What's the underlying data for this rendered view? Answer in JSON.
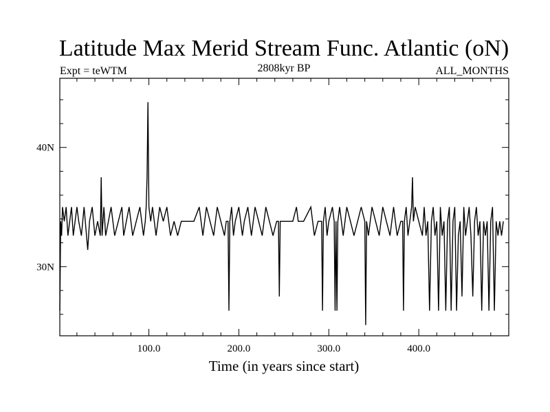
{
  "chart_data": {
    "type": "line",
    "title": "Latitude Max Merid Stream Func. Atlantic (oN)",
    "subtitle_left": "Expt = teWTM",
    "subtitle_center": "2808kyr BP",
    "subtitle_right": "ALL_MONTHS",
    "xlabel": "Time (in years since start)",
    "ylabel": "",
    "xlim": [
      1,
      500
    ],
    "ylim": [
      24.2,
      45.8
    ],
    "x_ticks_major": [
      100,
      200,
      300,
      400
    ],
    "x_tick_labels": [
      "100.0",
      "200.0",
      "300.0",
      "400.0"
    ],
    "x_ticks_minor": [
      20,
      40,
      60,
      80,
      120,
      140,
      160,
      180,
      220,
      240,
      260,
      280,
      320,
      340,
      360,
      380,
      420,
      440,
      460,
      480
    ],
    "y_ticks_major": [
      30,
      40
    ],
    "y_tick_labels": [
      "30N",
      "40N"
    ],
    "y_ticks_minor": [
      26,
      28,
      32,
      34,
      36,
      38,
      42,
      44
    ],
    "grid": false,
    "series": [
      {
        "name": "latitude_max_stream_function",
        "color": "#000000",
        "levels": [
          26.3,
          32.6,
          33.8,
          35.0
        ],
        "baseline": 33.8,
        "x": [
          1,
          2,
          3,
          4,
          6,
          8,
          10,
          12,
          14,
          15,
          16,
          18,
          20,
          22,
          25,
          28,
          32,
          34,
          37,
          40,
          43,
          46,
          47,
          48,
          49,
          50,
          52,
          55,
          58,
          62,
          66,
          70,
          72,
          75,
          78,
          82,
          86,
          90,
          94,
          96,
          97,
          98,
          99,
          100,
          102,
          104,
          108,
          112,
          116,
          120,
          124,
          128,
          132,
          136,
          140,
          144,
          150,
          156,
          160,
          164,
          168,
          172,
          176,
          180,
          184,
          186,
          188,
          189,
          190,
          192,
          194,
          196,
          200,
          204,
          206,
          210,
          214,
          218,
          222,
          226,
          230,
          234,
          238,
          242,
          244,
          245,
          246,
          248,
          252,
          256,
          260,
          264,
          266,
          268,
          272,
          280,
          284,
          288,
          290,
          292,
          293,
          294,
          296,
          298,
          300,
          304,
          306,
          307,
          308,
          309,
          310,
          312,
          316,
          320,
          324,
          328,
          332,
          336,
          340,
          341,
          342,
          344,
          348,
          352,
          356,
          360,
          364,
          368,
          372,
          376,
          380,
          382,
          383,
          384,
          386,
          388,
          390,
          392,
          393,
          394,
          396,
          400,
          404,
          406,
          408,
          410,
          412,
          414,
          416,
          418,
          420,
          422,
          424,
          426,
          428,
          430,
          432,
          434,
          436,
          438,
          440,
          442,
          444,
          446,
          448,
          450,
          452,
          454,
          456,
          458,
          460,
          462,
          464,
          466,
          468,
          470,
          472,
          474,
          476,
          478,
          480,
          482,
          484,
          486,
          488,
          490,
          492,
          494
        ],
        "y": [
          26.3,
          33.8,
          32.6,
          35.0,
          33.8,
          35.0,
          32.6,
          33.8,
          35.0,
          33.8,
          32.6,
          33.8,
          35.0,
          33.8,
          32.6,
          35.0,
          31.4,
          33.8,
          35.0,
          32.6,
          33.8,
          32.6,
          37.5,
          32.6,
          33.8,
          35.0,
          32.6,
          33.8,
          35.0,
          32.6,
          33.8,
          35.0,
          32.6,
          33.8,
          35.0,
          32.6,
          33.8,
          35.0,
          32.6,
          33.8,
          35.0,
          37.5,
          43.8,
          35.0,
          33.8,
          35.0,
          32.6,
          35.0,
          33.8,
          35.0,
          32.6,
          33.8,
          32.6,
          33.8,
          33.8,
          33.8,
          33.8,
          35.0,
          32.6,
          35.0,
          33.8,
          32.6,
          35.0,
          33.8,
          32.6,
          33.8,
          33.8,
          26.3,
          33.8,
          35.0,
          32.6,
          33.8,
          35.0,
          32.6,
          33.8,
          35.0,
          32.6,
          35.0,
          33.8,
          32.6,
          35.0,
          33.8,
          32.6,
          33.8,
          33.8,
          27.5,
          33.8,
          33.8,
          33.8,
          33.8,
          33.8,
          35.0,
          33.8,
          33.8,
          33.8,
          35.0,
          32.6,
          33.8,
          33.8,
          33.8,
          26.3,
          33.8,
          35.0,
          32.6,
          33.8,
          35.0,
          33.8,
          26.3,
          33.8,
          26.3,
          33.8,
          35.0,
          32.6,
          35.0,
          33.8,
          32.6,
          33.8,
          35.0,
          33.8,
          25.1,
          33.8,
          32.6,
          35.0,
          33.8,
          32.6,
          35.0,
          33.8,
          32.6,
          35.0,
          32.6,
          33.8,
          33.8,
          26.3,
          33.8,
          35.0,
          32.6,
          33.8,
          35.0,
          37.5,
          33.8,
          35.0,
          33.8,
          32.6,
          35.0,
          32.6,
          33.8,
          26.3,
          33.8,
          35.0,
          32.6,
          33.8,
          26.3,
          35.0,
          32.6,
          33.8,
          26.3,
          33.8,
          35.0,
          26.3,
          33.8,
          35.0,
          26.3,
          32.6,
          33.8,
          27.5,
          35.0,
          32.6,
          33.8,
          35.0,
          32.6,
          27.5,
          33.8,
          35.0,
          32.6,
          33.8,
          26.3,
          33.8,
          32.6,
          33.8,
          26.3,
          33.8,
          35.0,
          26.3,
          33.8,
          32.6,
          33.8,
          32.6,
          33.8
        ]
      }
    ]
  }
}
